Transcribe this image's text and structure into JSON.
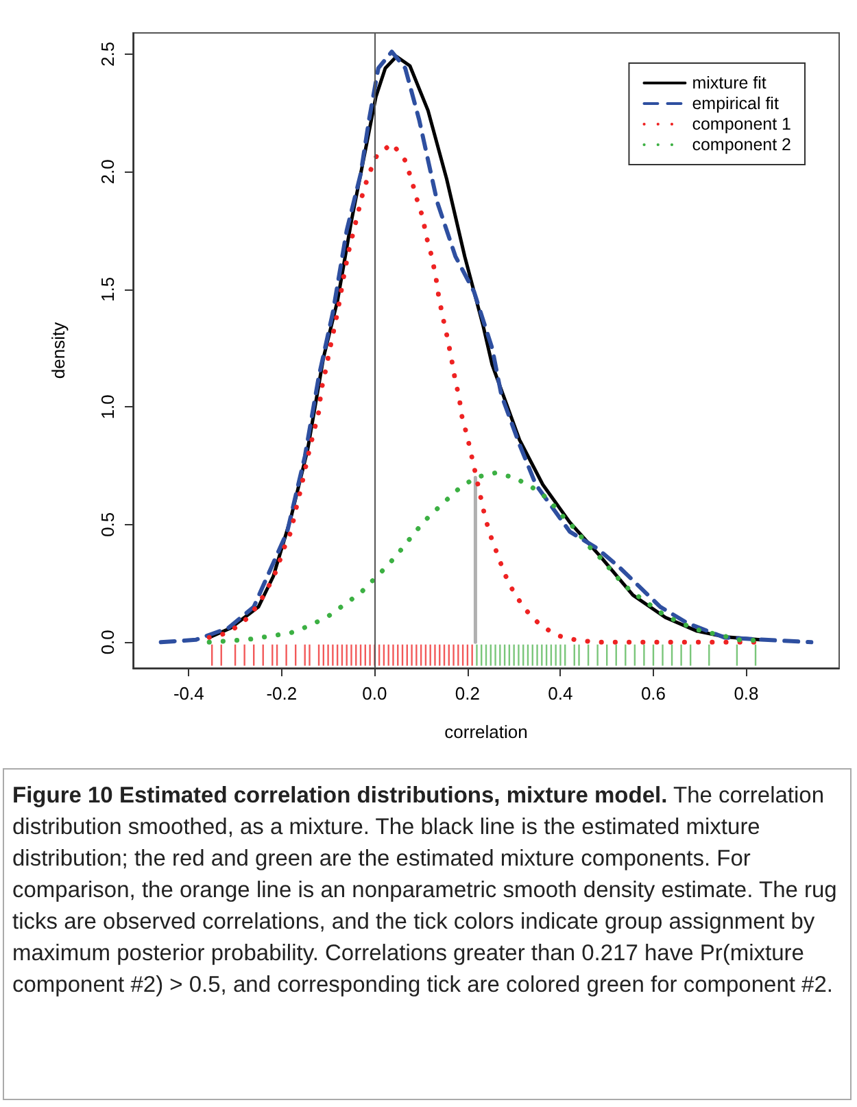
{
  "chart_data": {
    "type": "line",
    "title": "Figure 10 Estimated correlation distributions, mixture model.",
    "annotations": [
      "The correlation distribution smoothed, as a mixture. The black line is the estimated mixture distribution; the red and green are the estimated mixture components. For comparison, the orange line is an nonparametric smooth density estimate. The rug ticks are observed correlations, and the tick colors indicate group assignment by maximum posterior probability. Correlations greater than 0.217 have Pr(mixture component #2) > 0.5, and corresponding tick are colored green for component #2."
    ],
    "xlabel": "correlation",
    "ylabel": "density",
    "xlim": [
      -0.52,
      1.0
    ],
    "ylim": [
      -0.11,
      2.59
    ],
    "xticks": [
      {
        "value": -0.4,
        "label": "-0.4"
      },
      {
        "value": -0.2,
        "label": "-0.2"
      },
      {
        "value": 0,
        "label": "0.0"
      },
      {
        "value": 0.2,
        "label": "0.2"
      },
      {
        "value": 0.4,
        "label": "0.4"
      },
      {
        "value": 0.6,
        "label": "0.6"
      },
      {
        "value": 0.8,
        "label": "0.8"
      }
    ],
    "yticks": [
      {
        "value": 0,
        "label": "0.0"
      },
      {
        "value": 0.5,
        "label": "0.5"
      },
      {
        "value": 1,
        "label": "1.0"
      },
      {
        "value": 1.5,
        "label": "1.5"
      },
      {
        "value": 2,
        "label": "2.0"
      },
      {
        "value": 2.5,
        "label": "2.5"
      }
    ],
    "grid": false,
    "legend": "top right",
    "ref_lines": [
      {
        "axis": "x",
        "value": 0,
        "color": "#555555"
      }
    ],
    "series": [
      {
        "name": "mixture fit",
        "color": "#000000",
        "line_style": "solid",
        "x": [
          -0.356,
          -0.31,
          -0.25,
          -0.218,
          -0.18,
          -0.144,
          -0.11,
          -0.08,
          -0.05,
          -0.02,
          0.003,
          0.023,
          0.047,
          0.076,
          0.115,
          0.155,
          0.194,
          0.233,
          0.253,
          0.312,
          0.362,
          0.42,
          0.488,
          0.556,
          0.626,
          0.694,
          0.753,
          0.83
        ],
        "values": [
          0.02,
          0.06,
          0.15,
          0.28,
          0.53,
          0.82,
          1.21,
          1.45,
          1.79,
          2.09,
          2.32,
          2.44,
          2.49,
          2.45,
          2.26,
          1.97,
          1.64,
          1.35,
          1.18,
          0.86,
          0.67,
          0.51,
          0.36,
          0.2,
          0.105,
          0.047,
          0.023,
          0.01
        ]
      },
      {
        "name": "empirical fit",
        "color": "#2e4fa0",
        "line_style": "dashed",
        "x": [
          -0.46,
          -0.385,
          -0.315,
          -0.26,
          -0.188,
          -0.15,
          -0.12,
          -0.09,
          -0.06,
          -0.03,
          -0.012,
          0.008,
          0.037,
          0.066,
          0.096,
          0.135,
          0.174,
          0.214,
          0.253,
          0.273,
          0.312,
          0.347,
          0.42,
          0.478,
          0.526,
          0.615,
          0.674,
          0.753,
          0.84,
          0.94
        ],
        "values": [
          0,
          0.01,
          0.06,
          0.15,
          0.47,
          0.79,
          1.13,
          1.4,
          1.75,
          1.99,
          2.22,
          2.44,
          2.51,
          2.44,
          2.22,
          1.87,
          1.64,
          1.49,
          1.25,
          1.05,
          0.84,
          0.67,
          0.47,
          0.4,
          0.32,
          0.15,
          0.08,
          0.02,
          0.01,
          0
        ]
      },
      {
        "name": "component 1",
        "color": "#ee2222",
        "line_style": "dotted",
        "x": [
          -0.356,
          -0.315,
          -0.28,
          -0.25,
          -0.23,
          -0.21,
          -0.197,
          -0.18,
          -0.17,
          -0.16,
          -0.15,
          -0.14,
          -0.13,
          -0.12,
          -0.115,
          -0.106,
          -0.097,
          -0.08,
          -0.065,
          -0.056,
          -0.035,
          -0.024,
          -0.012,
          0.005,
          0.038,
          0.065,
          0.079,
          0.09,
          0.103,
          0.112,
          0.123,
          0.132,
          0.138,
          0.147,
          0.156,
          0.165,
          0.173,
          0.182,
          0.188,
          0.2,
          0.209,
          0.218,
          0.238,
          0.25,
          0.265,
          0.28,
          0.3,
          0.324,
          0.353,
          0.39,
          0.432,
          0.476,
          0.6,
          0.7,
          0.83
        ],
        "values": [
          0.02,
          0.04,
          0.09,
          0.16,
          0.23,
          0.31,
          0.39,
          0.47,
          0.56,
          0.64,
          0.73,
          0.82,
          0.9,
          0.98,
          1.07,
          1.15,
          1.24,
          1.4,
          1.57,
          1.66,
          1.83,
          1.92,
          1.99,
          2.07,
          2.12,
          2.05,
          1.97,
          1.89,
          1.81,
          1.72,
          1.64,
          1.55,
          1.47,
          1.38,
          1.3,
          1.21,
          1.12,
          1.04,
          0.96,
          0.87,
          0.79,
          0.71,
          0.53,
          0.45,
          0.37,
          0.29,
          0.21,
          0.14,
          0.08,
          0.03,
          0.01,
          0,
          0,
          0,
          0
        ]
      },
      {
        "name": "component 2",
        "color": "#3cb043",
        "line_style": "dotted",
        "x": [
          -0.356,
          -0.31,
          -0.27,
          -0.227,
          -0.18,
          -0.14,
          -0.1,
          -0.065,
          -0.03,
          0,
          0.03,
          0.06,
          0.088,
          0.115,
          0.147,
          0.18,
          0.217,
          0.26,
          0.3,
          0.338,
          0.373,
          0.403,
          0.432,
          0.46,
          0.49,
          0.52,
          0.55,
          0.585,
          0.62,
          0.66,
          0.7,
          0.744,
          0.785,
          0.83
        ],
        "values": [
          0,
          0.006,
          0.012,
          0.025,
          0.04,
          0.07,
          0.11,
          0.16,
          0.21,
          0.27,
          0.33,
          0.4,
          0.47,
          0.53,
          0.59,
          0.65,
          0.7,
          0.72,
          0.7,
          0.66,
          0.61,
          0.54,
          0.48,
          0.41,
          0.35,
          0.28,
          0.22,
          0.17,
          0.12,
          0.08,
          0.05,
          0.03,
          0.01,
          0.007
        ]
      },
      {
        "color": "#b0b0b0",
        "line_style": "solid",
        "x": [
          0.217,
          0.217
        ],
        "values": [
          0,
          0.7
        ]
      },
      {
        "type": "bar",
        "color": "#ee2222",
        "x": [
          -0.35,
          -0.33,
          -0.3,
          -0.28,
          -0.26,
          -0.24,
          -0.22,
          -0.21,
          -0.19,
          -0.17,
          -0.15,
          -0.14,
          -0.12,
          -0.11,
          -0.1,
          -0.09,
          -0.08,
          -0.07,
          -0.06,
          -0.05,
          -0.04,
          -0.03,
          -0.02,
          -0.01,
          0,
          0.01,
          0.02,
          0.03,
          0.04,
          0.05,
          0.06,
          0.07,
          0.08,
          0.09,
          0.1,
          0.11,
          0.12,
          0.13,
          0.14,
          0.15,
          0.16,
          0.17,
          0.18,
          0.19,
          0.2,
          0.21
        ],
        "base": [
          -0.1,
          -0.1,
          -0.1,
          -0.1,
          -0.1,
          -0.1,
          -0.1,
          -0.1,
          -0.1,
          -0.1,
          -0.1,
          -0.1,
          -0.1,
          -0.1,
          -0.1,
          -0.1,
          -0.1,
          -0.1,
          -0.1,
          -0.1,
          -0.1,
          -0.1,
          -0.1,
          -0.1,
          -0.1,
          -0.1,
          -0.1,
          -0.1,
          -0.1,
          -0.1,
          -0.1,
          -0.1,
          -0.1,
          -0.1,
          -0.1,
          -0.1,
          -0.1,
          -0.1,
          -0.1,
          -0.1,
          -0.1,
          -0.1,
          -0.1,
          -0.1,
          -0.1,
          -0.1
        ],
        "values": [
          0.09,
          0.09,
          0.09,
          0.09,
          0.09,
          0.09,
          0.09,
          0.09,
          0.09,
          0.09,
          0.09,
          0.09,
          0.09,
          0.09,
          0.09,
          0.09,
          0.09,
          0.09,
          0.09,
          0.09,
          0.09,
          0.09,
          0.09,
          0.09,
          0.09,
          0.09,
          0.09,
          0.09,
          0.09,
          0.09,
          0.09,
          0.09,
          0.09,
          0.09,
          0.09,
          0.09,
          0.09,
          0.09,
          0.09,
          0.09,
          0.09,
          0.09,
          0.09,
          0.09,
          0.09,
          0.09
        ]
      },
      {
        "type": "bar",
        "color": "#4db34d",
        "x": [
          0.22,
          0.23,
          0.24,
          0.25,
          0.26,
          0.27,
          0.28,
          0.29,
          0.3,
          0.31,
          0.32,
          0.33,
          0.34,
          0.35,
          0.36,
          0.37,
          0.38,
          0.39,
          0.4,
          0.41,
          0.43,
          0.44,
          0.46,
          0.48,
          0.5,
          0.52,
          0.54,
          0.56,
          0.58,
          0.6,
          0.62,
          0.64,
          0.66,
          0.68,
          0.72,
          0.78,
          0.82
        ],
        "base": [
          -0.1,
          -0.1,
          -0.1,
          -0.1,
          -0.1,
          -0.1,
          -0.1,
          -0.1,
          -0.1,
          -0.1,
          -0.1,
          -0.1,
          -0.1,
          -0.1,
          -0.1,
          -0.1,
          -0.1,
          -0.1,
          -0.1,
          -0.1,
          -0.1,
          -0.1,
          -0.1,
          -0.1,
          -0.1,
          -0.1,
          -0.1,
          -0.1,
          -0.1,
          -0.1,
          -0.1,
          -0.1,
          -0.1,
          -0.1,
          -0.1,
          -0.1,
          -0.1
        ],
        "values": [
          0.09,
          0.09,
          0.09,
          0.09,
          0.09,
          0.09,
          0.09,
          0.09,
          0.09,
          0.09,
          0.09,
          0.09,
          0.09,
          0.09,
          0.09,
          0.09,
          0.09,
          0.09,
          0.09,
          0.09,
          0.09,
          0.09,
          0.09,
          0.09,
          0.09,
          0.09,
          0.09,
          0.09,
          0.09,
          0.09,
          0.09,
          0.09,
          0.09,
          0.09,
          0.09,
          0.09,
          0.09
        ]
      }
    ]
  }
}
